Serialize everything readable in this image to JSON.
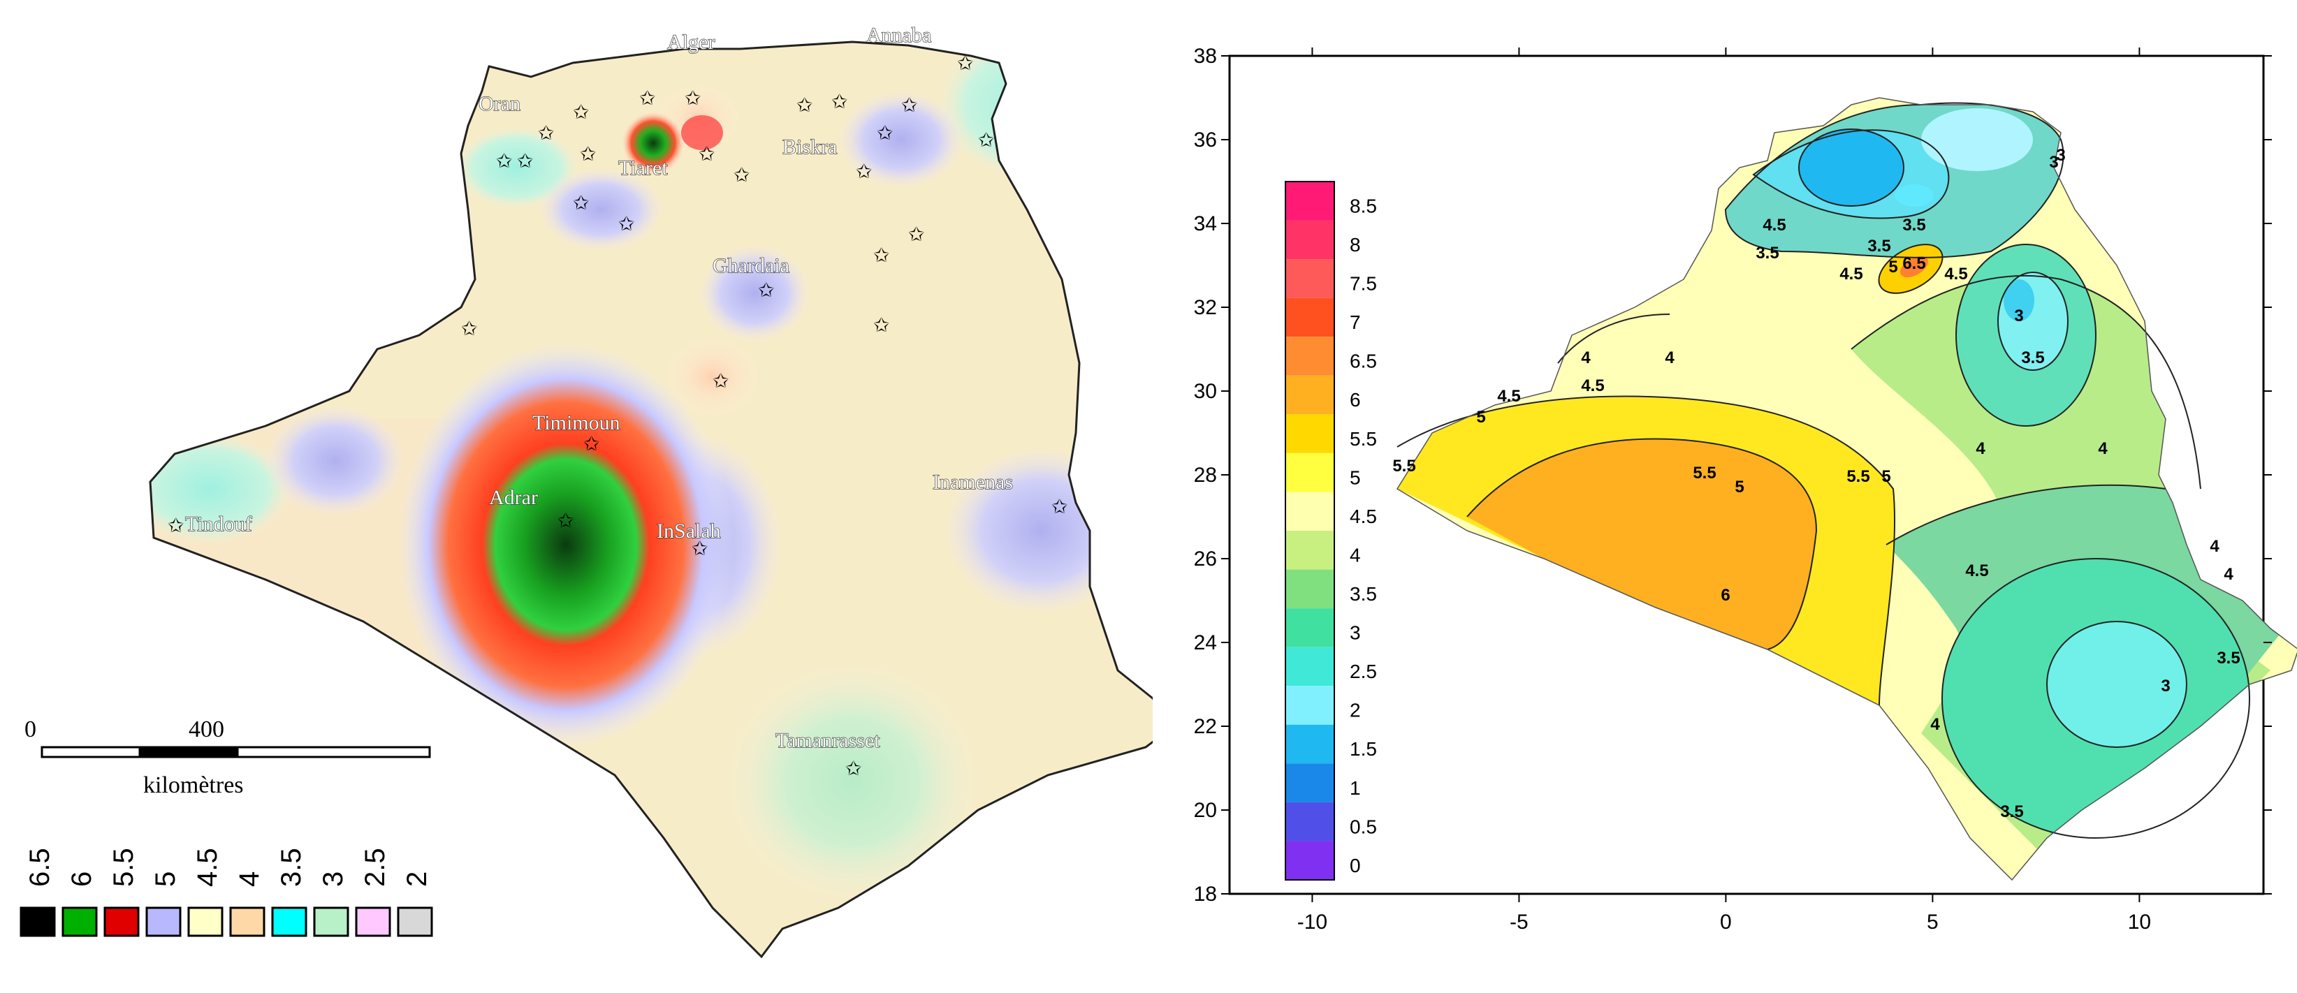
{
  "left_map": {
    "cities": [
      {
        "name": "Oran"
      },
      {
        "name": "Alger"
      },
      {
        "name": "Annaba"
      },
      {
        "name": "Tiaret"
      },
      {
        "name": "Biskra"
      },
      {
        "name": "Ghardaia"
      },
      {
        "name": "Timimoun"
      },
      {
        "name": "Adrar"
      },
      {
        "name": "InSalah"
      },
      {
        "name": "Tindouf"
      },
      {
        "name": "Inamenas"
      },
      {
        "name": "Tamanrasset"
      }
    ],
    "scale_bar": {
      "start": "0",
      "mid": "400",
      "unit": "kilomètres"
    },
    "legend": [
      {
        "label": "6.5",
        "color": "#000000"
      },
      {
        "label": "6",
        "color": "#00b000"
      },
      {
        "label": "5.5",
        "color": "#e00000"
      },
      {
        "label": "5",
        "color": "#b8b8ff"
      },
      {
        "label": "4.5",
        "color": "#ffffc8"
      },
      {
        "label": "4",
        "color": "#ffd8a8"
      },
      {
        "label": "3.5",
        "color": "#00ffff"
      },
      {
        "label": "3",
        "color": "#b8f0c8"
      },
      {
        "label": "2.5",
        "color": "#ffc8ff"
      },
      {
        "label": "2",
        "color": "#d8d8d8"
      }
    ]
  },
  "right_map": {
    "x_ticks": [
      "-10",
      "-5",
      "0",
      "5",
      "10"
    ],
    "y_ticks": [
      "38",
      "36",
      "34",
      "32",
      "30",
      "28",
      "26",
      "24",
      "22",
      "20",
      "18"
    ],
    "xlim": [
      -12,
      13
    ],
    "ylim": [
      18,
      38
    ],
    "colorbar": [
      {
        "label": "8.5",
        "color": "#ff1a75"
      },
      {
        "label": "8",
        "color": "#ff3366"
      },
      {
        "label": "7.5",
        "color": "#ff5a5a"
      },
      {
        "label": "7",
        "color": "#ff5020"
      },
      {
        "label": "6.5",
        "color": "#ff8c30"
      },
      {
        "label": "6",
        "color": "#ffb020"
      },
      {
        "label": "5.5",
        "color": "#ffd800"
      },
      {
        "label": "5",
        "color": "#ffff40"
      },
      {
        "label": "4.5",
        "color": "#ffffb0"
      },
      {
        "label": "4",
        "color": "#c8f080"
      },
      {
        "label": "3.5",
        "color": "#80e080"
      },
      {
        "label": "3",
        "color": "#40e0a0"
      },
      {
        "label": "2.5",
        "color": "#40e8d8"
      },
      {
        "label": "2",
        "color": "#80f0ff"
      },
      {
        "label": "1.5",
        "color": "#20b8f0"
      },
      {
        "label": "1",
        "color": "#1a88e8"
      },
      {
        "label": "0.5",
        "color": "#5050e8"
      },
      {
        "label": "0",
        "color": "#8030f0"
      }
    ],
    "contour_labels": [
      "6",
      "5",
      "5.5",
      "5.5",
      "5",
      "4.5",
      "4.5",
      "4",
      "4",
      "4.5",
      "4",
      "4",
      "4",
      "3.5",
      "3",
      "3.5",
      "3.5",
      "3",
      "4",
      "3.5",
      "3.5",
      "3",
      "4.5",
      "5",
      "6.5",
      "4.5",
      "5.5",
      "5",
      "3",
      "3.5",
      "4.5",
      "4"
    ]
  }
}
